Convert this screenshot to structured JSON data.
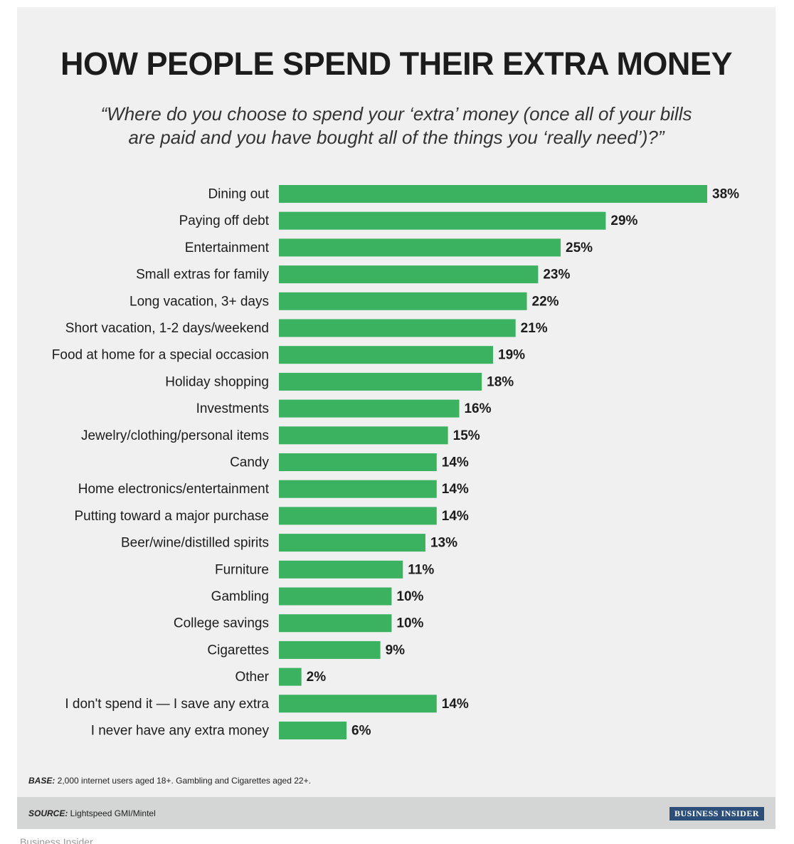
{
  "title": "HOW PEOPLE SPEND THEIR EXTRA MONEY",
  "subtitle": "“Where do you choose to spend your ‘extra’ money (once all of your bills are paid and you have bought all of the things you ‘really need’)?”",
  "colors": {
    "bar": "#3ab25f",
    "background": "#f0f0f0",
    "footer": "#d4d5d5",
    "brand": "#2c4f7a"
  },
  "chart_data": {
    "type": "bar",
    "orientation": "horizontal",
    "title": "HOW PEOPLE SPEND THEIR EXTRA MONEY",
    "xlabel": "",
    "ylabel": "",
    "xlim": [
      0,
      38
    ],
    "grid": false,
    "categories": [
      "Dining out",
      "Paying off debt",
      "Entertainment",
      "Small extras for family",
      "Long vacation, 3+ days",
      "Short vacation, 1-2 days/weekend",
      "Food at home for a special occasion",
      "Holiday shopping",
      "Investments",
      "Jewelry/clothing/personal items",
      "Candy",
      "Home electronics/entertainment",
      "Putting toward a major purchase",
      "Beer/wine/distilled spirits",
      "Furniture",
      "Gambling",
      "College savings",
      "Cigarettes",
      "Other",
      "I don't spend it — I save any extra",
      "I never have any extra money"
    ],
    "values": [
      38,
      29,
      25,
      23,
      22,
      21,
      19,
      18,
      16,
      15,
      14,
      14,
      14,
      13,
      11,
      10,
      10,
      9,
      2,
      14,
      6
    ],
    "value_labels": [
      "38%",
      "29%",
      "25%",
      "23%",
      "22%",
      "21%",
      "19%",
      "18%",
      "16%",
      "15%",
      "14%",
      "14%",
      "14%",
      "13%",
      "11%",
      "10%",
      "10%",
      "9%",
      "2%",
      "14%",
      "6%"
    ]
  },
  "notes": {
    "base_label": "BASE:",
    "base_text": " 2,000 internet users aged 18+. Gambling and Cigarettes aged 22+.",
    "source_label": "SOURCE:",
    "source_text": " Lightspeed GMI/Mintel"
  },
  "brand": "BUSINESS INSIDER",
  "credit": "Business Insider"
}
